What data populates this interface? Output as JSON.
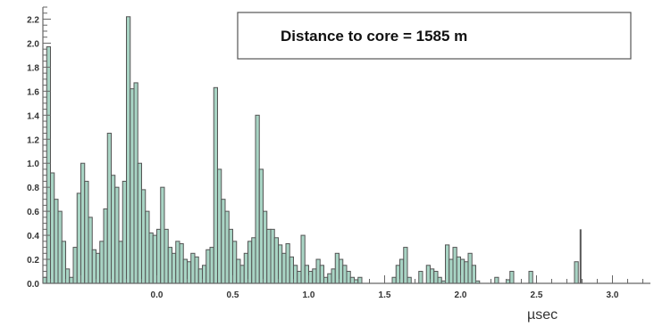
{
  "chart_data": {
    "type": "bar",
    "title": "",
    "xlabel": "µsec",
    "ylabel": "",
    "xlim": [
      -0.75,
      3.25
    ],
    "ylim": [
      0,
      2.3
    ],
    "bin_width": 0.025,
    "x_start": -0.75,
    "xticks": [
      {
        "value": 0.0,
        "label": "0.0"
      },
      {
        "value": 0.5,
        "label": "0.5"
      },
      {
        "value": 1.0,
        "label": "1.0"
      },
      {
        "value": 1.5,
        "label": "1.5"
      },
      {
        "value": 2.0,
        "label": "2.0"
      },
      {
        "value": 2.5,
        "label": "2.5"
      },
      {
        "value": 3.0,
        "label": "3.0"
      }
    ],
    "yticks": [
      {
        "value": 0.0,
        "label": "0.0"
      },
      {
        "value": 0.2,
        "label": "0.2"
      },
      {
        "value": 0.4,
        "label": "0.4"
      },
      {
        "value": 0.6,
        "label": "0.6"
      },
      {
        "value": 0.8,
        "label": "0.8"
      },
      {
        "value": 1.0,
        "label": "1.0"
      },
      {
        "value": 1.2,
        "label": "1.2"
      },
      {
        "value": 1.4,
        "label": "1.4"
      },
      {
        "value": 1.6,
        "label": "1.6"
      },
      {
        "value": 1.8,
        "label": "1.8"
      },
      {
        "value": 2.0,
        "label": "2.0"
      },
      {
        "value": 2.2,
        "label": "2.2"
      }
    ],
    "grid": false,
    "legend": "none",
    "annotation": "Distance to core = 1585 m",
    "colors": {
      "fill": "#a8d4c4",
      "outline": "#555555",
      "axis": "#666666"
    },
    "values": [
      0.05,
      1.97,
      0.92,
      0.7,
      0.6,
      0.35,
      0.12,
      0.05,
      0.3,
      0.75,
      1.0,
      0.85,
      0.55,
      0.28,
      0.25,
      0.35,
      0.62,
      1.25,
      0.9,
      0.8,
      0.35,
      0.85,
      2.22,
      1.62,
      1.67,
      1.0,
      0.78,
      0.6,
      0.42,
      0.4,
      0.45,
      0.8,
      0.45,
      0.3,
      0.25,
      0.35,
      0.33,
      0.2,
      0.18,
      0.25,
      0.22,
      0.12,
      0.15,
      0.28,
      0.3,
      1.63,
      0.95,
      0.7,
      0.6,
      0.45,
      0.35,
      0.2,
      0.15,
      0.25,
      0.35,
      0.38,
      1.4,
      0.95,
      0.6,
      0.45,
      0.45,
      0.38,
      0.32,
      0.25,
      0.33,
      0.22,
      0.15,
      0.1,
      0.4,
      0.15,
      0.1,
      0.12,
      0.2,
      0.15,
      0.05,
      0.08,
      0.12,
      0.25,
      0.2,
      0.15,
      0.1,
      0.05,
      0.03,
      0.05,
      0.0,
      0.0,
      0.0,
      0.0,
      0.0,
      0.0,
      0.0,
      0.0,
      0.05,
      0.15,
      0.2,
      0.3,
      0.05,
      0.0,
      0.0,
      0.1,
      0.0,
      0.15,
      0.12,
      0.1,
      0.05,
      0.02,
      0.32,
      0.2,
      0.3,
      0.22,
      0.2,
      0.18,
      0.25,
      0.15,
      0.02,
      0.0,
      0.0,
      0.0,
      0.0,
      0.05,
      0.0,
      0.0,
      0.03,
      0.1,
      0.0,
      0.0,
      0.0,
      0.0,
      0.1,
      0.0,
      0.0,
      0.0,
      0.0,
      0.0,
      0.0,
      0.0,
      0.0,
      0.0,
      0.0,
      0.0,
      0.18
    ],
    "spikes": [
      {
        "x": 2.79,
        "value": 0.45
      }
    ]
  }
}
